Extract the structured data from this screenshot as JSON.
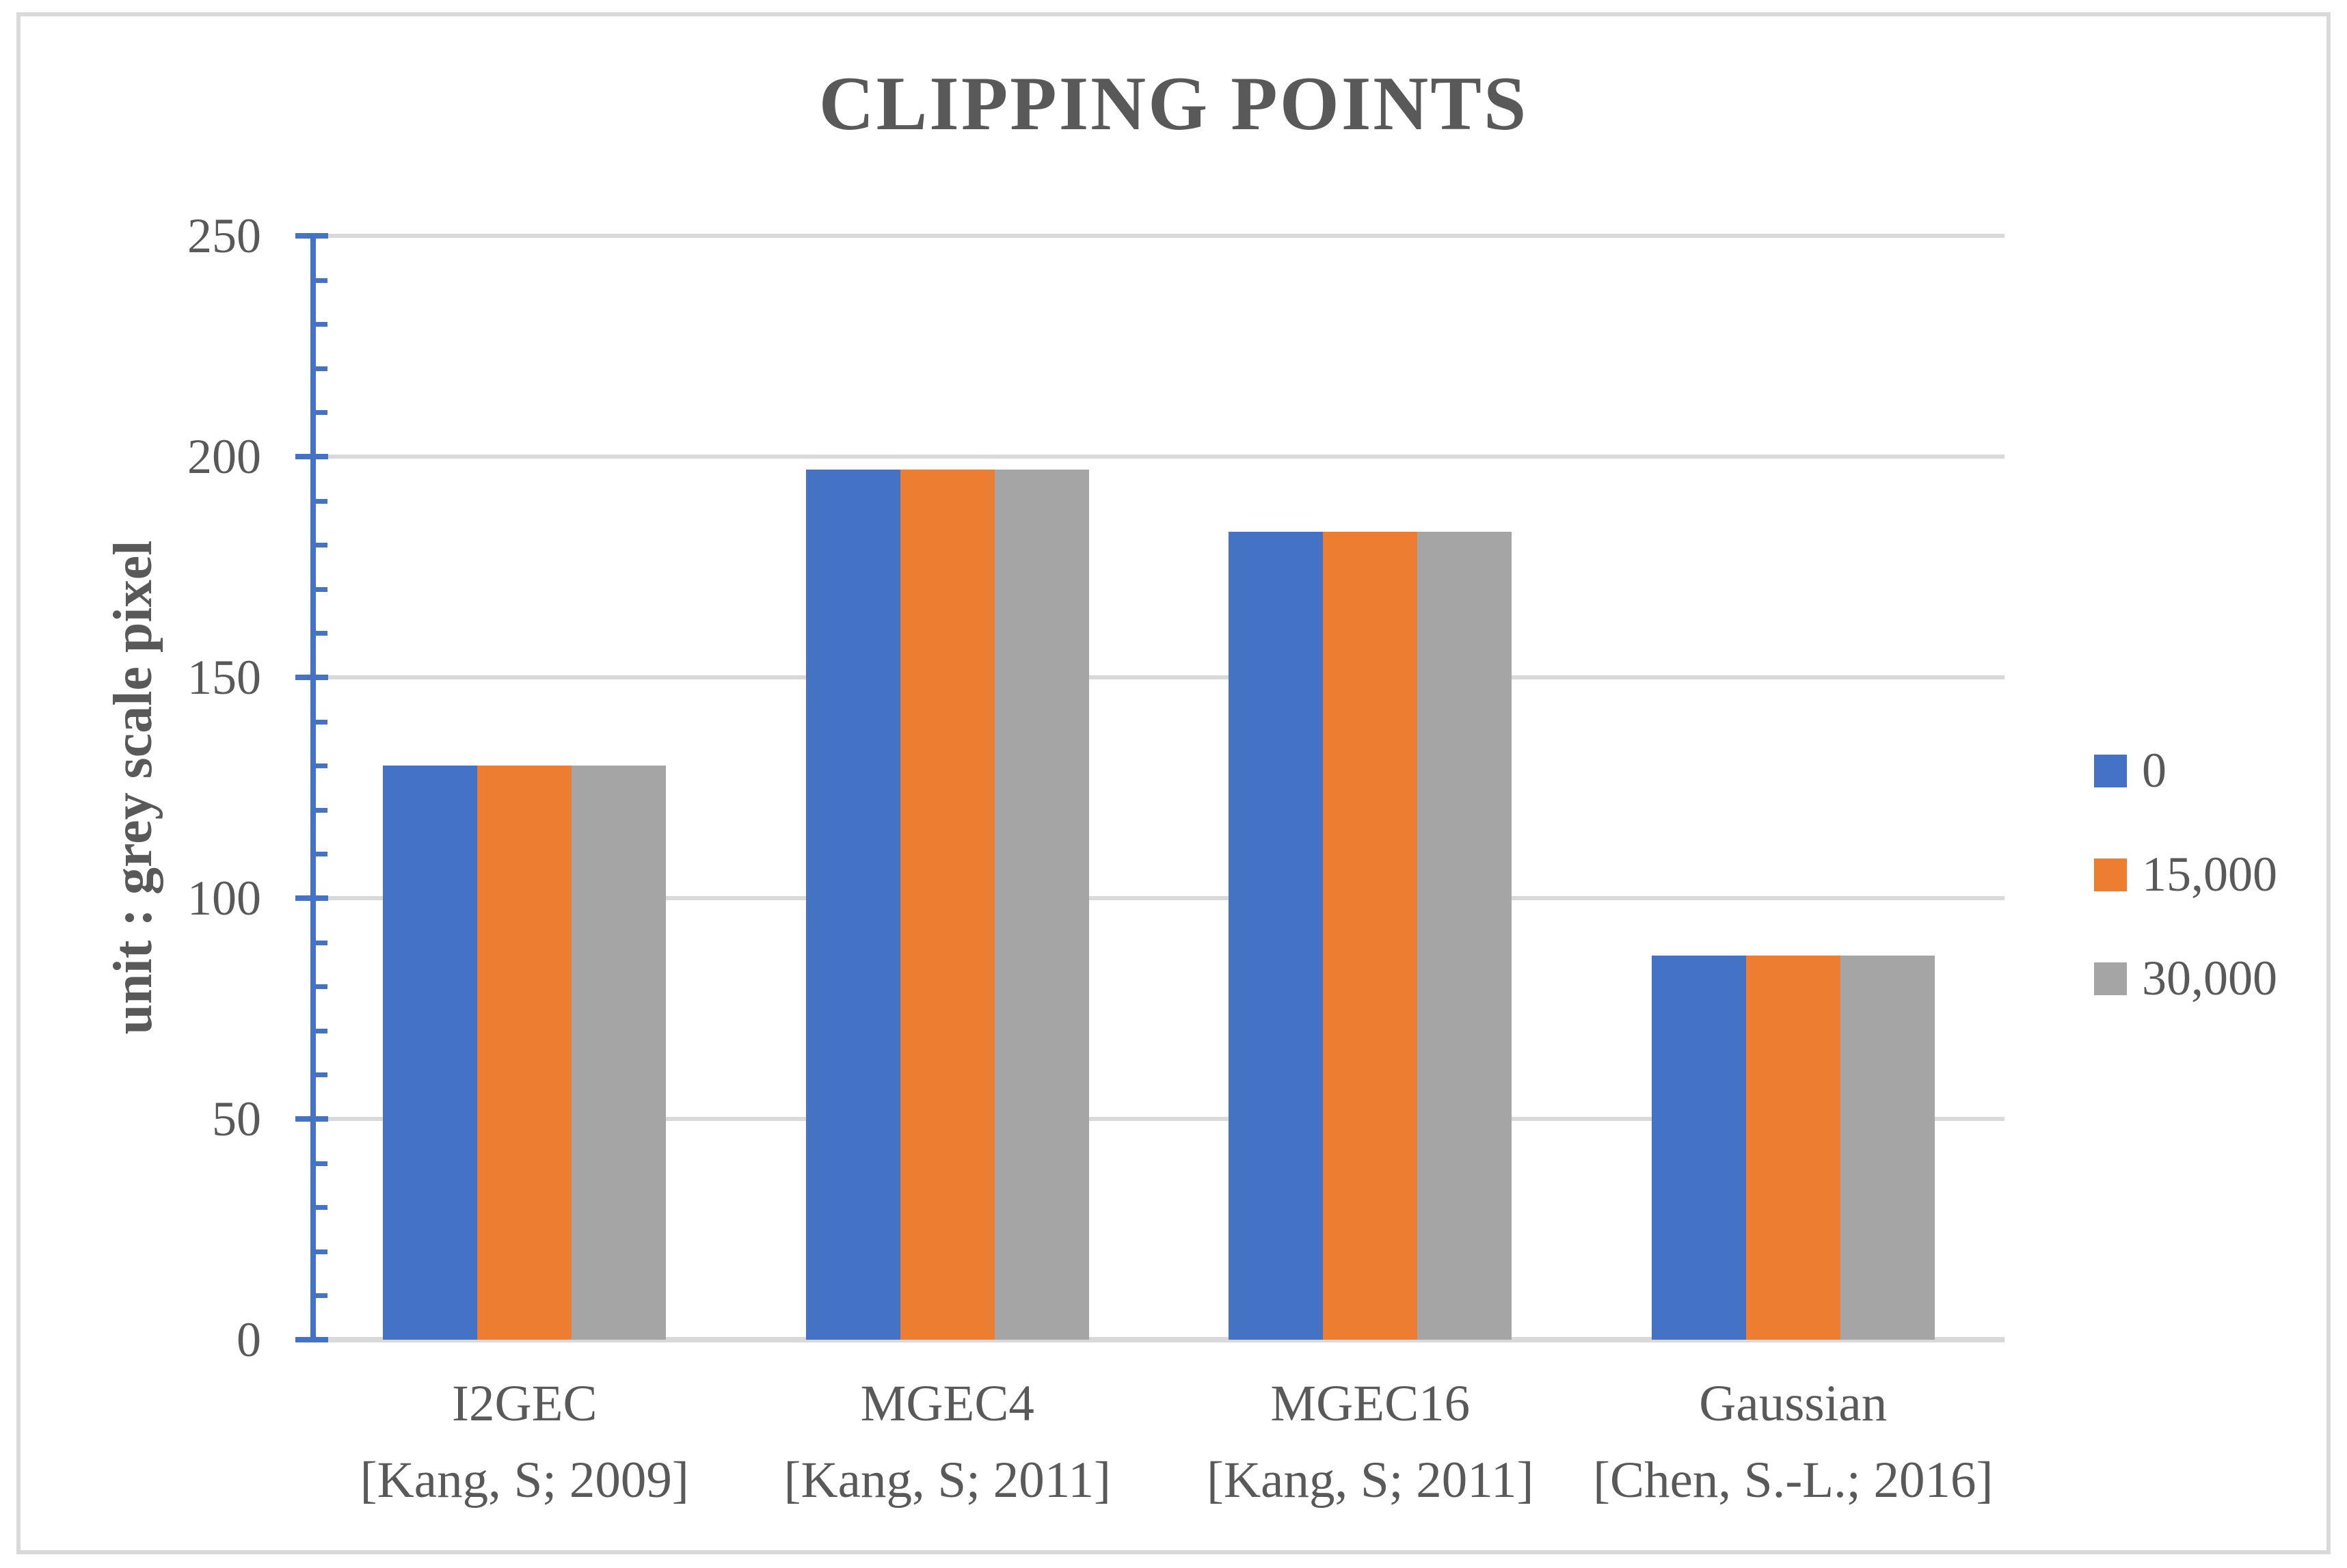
{
  "chart_data": {
    "type": "bar",
    "title": "CLIPPING POINTS",
    "ylabel": "unit : grey scale pixel",
    "categories": [
      "I2GEC",
      "MGEC4",
      "MGEC16",
      "Gaussian"
    ],
    "category_refs": [
      "[Kang, S; 2009]",
      "[Kang, S; 2011]",
      "[Kang, S; 2011]",
      "[Chen, S.-L.; 2016]"
    ],
    "series": [
      {
        "name": "0",
        "color": "#4472C4",
        "values": [
          130,
          197,
          183,
          87
        ]
      },
      {
        "name": "15,000",
        "color": "#ED7D31",
        "values": [
          130,
          197,
          183,
          87
        ]
      },
      {
        "name": "30,000",
        "color": "#A5A5A5",
        "values": [
          130,
          197,
          183,
          87
        ]
      }
    ],
    "ylim": [
      0,
      250
    ],
    "ytick_interval": 50,
    "ytick_minor_interval": 10,
    "ytick_labels": [
      "0",
      "50",
      "100",
      "150",
      "200",
      "250"
    ],
    "grid": true,
    "legend_position": "right",
    "colors": {
      "axis_line": "#4472C4",
      "gridline": "#D9D9D9",
      "text": "#595959",
      "frame_border": "#D9D9D9"
    }
  }
}
